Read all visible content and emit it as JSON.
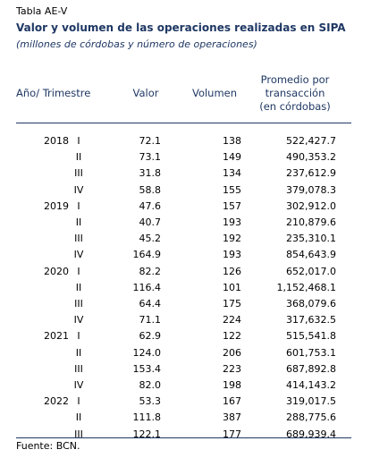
{
  "header": {
    "label": "Tabla AE-V",
    "title": "Valor y volumen de las operaciones realizadas en SIPA",
    "subtitle": "(millones de córdobas y número de operaciones)"
  },
  "table": {
    "columns": [
      "Año/ Trimestre",
      "Valor",
      "Volumen",
      [
        "Promedio por",
        "transacción",
        "(en córdobas)"
      ]
    ],
    "rows": [
      [
        "2018",
        "I",
        "72.1",
        "138",
        "522,427.7"
      ],
      [
        null,
        "II",
        "73.1",
        "149",
        "490,353.2"
      ],
      [
        null,
        "III",
        "31.8",
        "134",
        "237,612.9"
      ],
      [
        null,
        "IV",
        "58.8",
        "155",
        "379,078.3"
      ],
      [
        "2019",
        "I",
        "47.6",
        "157",
        "302,912.0"
      ],
      [
        null,
        "II",
        "40.7",
        "193",
        "210,879.6"
      ],
      [
        null,
        "III",
        "45.2",
        "192",
        "235,310.1"
      ],
      [
        null,
        "IV",
        "164.9",
        "193",
        "854,643.9"
      ],
      [
        "2020",
        "I",
        "82.2",
        "126",
        "652,017.0"
      ],
      [
        null,
        "II",
        "116.4",
        "101",
        "1,152,468.1"
      ],
      [
        null,
        "III",
        "64.4",
        "175",
        "368,079.6"
      ],
      [
        null,
        "IV",
        "71.1",
        "224",
        "317,632.5"
      ],
      [
        "2021",
        "I",
        "62.9",
        "122",
        "515,541.8"
      ],
      [
        null,
        "II",
        "124.0",
        "206",
        "601,753.1"
      ],
      [
        null,
        "III",
        "153.4",
        "223",
        "687,892.8"
      ],
      [
        null,
        "IV",
        "82.0",
        "198",
        "414,143.2"
      ],
      [
        "2022",
        "I",
        "53.3",
        "167",
        "319,017.5"
      ],
      [
        null,
        "II",
        "111.8",
        "387",
        "288,775.6"
      ],
      [
        null,
        "III",
        "122.1",
        "177",
        "689,939.4"
      ]
    ]
  },
  "footer": {
    "source": "Fuente: BCN."
  }
}
